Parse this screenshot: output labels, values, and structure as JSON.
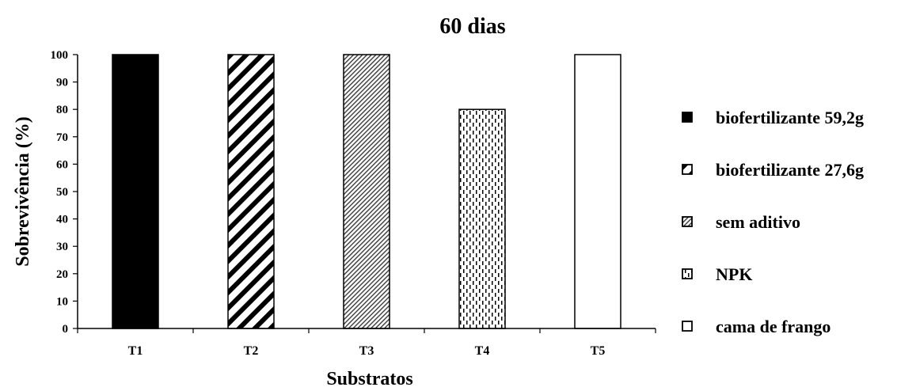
{
  "chart_data": {
    "type": "bar",
    "title": "60 dias",
    "xlabel": "Substratos",
    "ylabel": "Sobrevivência (%)",
    "ylim": [
      0,
      100
    ],
    "yticks": [
      0,
      10,
      20,
      30,
      40,
      50,
      60,
      70,
      80,
      90,
      100
    ],
    "categories": [
      "T1",
      "T2",
      "T3",
      "T4",
      "T5"
    ],
    "values": [
      100,
      100,
      100,
      80,
      100
    ],
    "legend": [
      "biofertilizante 59,2g",
      "biofertilizante 27,6g",
      "sem aditivo",
      "NPK",
      "cama de frango"
    ],
    "legend_position": "right",
    "grid": false
  }
}
